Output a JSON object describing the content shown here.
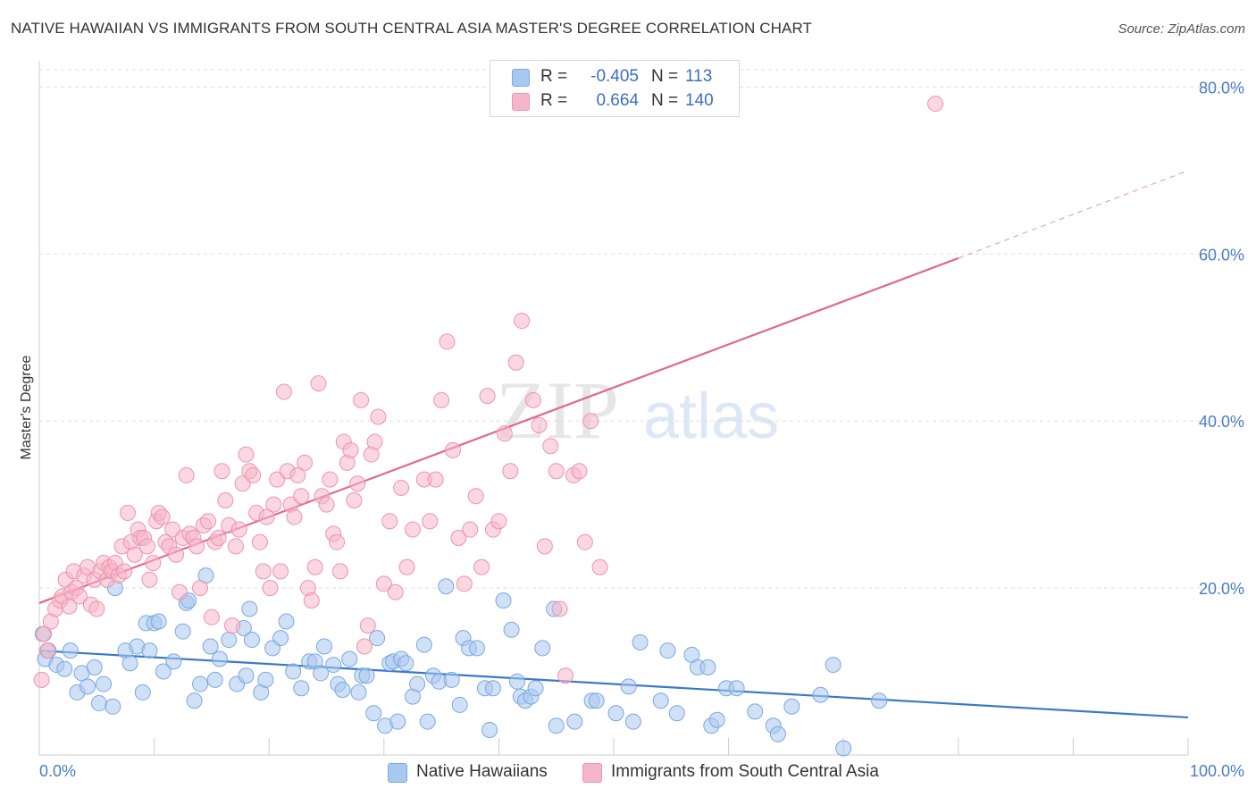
{
  "title": "NATIVE HAWAIIAN VS IMMIGRANTS FROM SOUTH CENTRAL ASIA MASTER'S DEGREE CORRELATION CHART",
  "source": "Source: ZipAtlas.com",
  "watermark": {
    "zip": "ZIP",
    "atlas": "atlas"
  },
  "colors": {
    "blue_fill": "#a9c8f0",
    "blue_stroke": "#7aa8e0",
    "blue_line": "#3a78c8",
    "pink_fill": "#f5b6c9",
    "pink_stroke": "#ee93b0",
    "pink_line": "#e06890",
    "grid": "#dddddd",
    "tick_text": "#4a7cc9"
  },
  "legend": {
    "rows": [
      {
        "r_label": "R =",
        "r_value": "-0.405",
        "n_label": "N =",
        "n_value": "113"
      },
      {
        "r_label": "R =",
        "r_value": "0.664",
        "n_label": "N =",
        "n_value": "140"
      }
    ]
  },
  "bottom_legend": [
    "Native Hawaiians",
    "Immigrants from South Central Asia"
  ],
  "chart_data": {
    "type": "scatter",
    "xlabel": "",
    "ylabel": "Master's Degree",
    "xlim": [
      0,
      100
    ],
    "ylim": [
      0,
      84
    ],
    "x_tick_labels": [
      "0.0%",
      "100.0%"
    ],
    "y_ticks": [
      20,
      40,
      60,
      80
    ],
    "y_tick_labels": [
      "20.0%",
      "40.0%",
      "60.0%",
      "80.0%"
    ],
    "grid": "horizontal dashed",
    "legend_position": "top-center",
    "series": [
      {
        "name": "Native Hawaiians",
        "color": "#a9c8f0",
        "trend": {
          "x": [
            0,
            100
          ],
          "y": [
            12.5,
            4.5
          ]
        },
        "points": [
          [
            0.3,
            14.5
          ],
          [
            0.5,
            11.5
          ],
          [
            0.8,
            12.5
          ],
          [
            1.5,
            10.8
          ],
          [
            2.2,
            10.3
          ],
          [
            2.7,
            12.5
          ],
          [
            3.3,
            7.5
          ],
          [
            3.7,
            9.8
          ],
          [
            4.2,
            8.2
          ],
          [
            4.8,
            10.5
          ],
          [
            5.2,
            6.2
          ],
          [
            5.6,
            8.5
          ],
          [
            6.4,
            5.8
          ],
          [
            6.6,
            20
          ],
          [
            7.5,
            12.5
          ],
          [
            7.9,
            11
          ],
          [
            8.5,
            13
          ],
          [
            9,
            7.5
          ],
          [
            9.3,
            15.8
          ],
          [
            9.6,
            12.5
          ],
          [
            10,
            15.8
          ],
          [
            10.4,
            16
          ],
          [
            10.8,
            10
          ],
          [
            11.7,
            11.2
          ],
          [
            12.5,
            14.8
          ],
          [
            12.8,
            18.2
          ],
          [
            13,
            18.5
          ],
          [
            13.5,
            6.5
          ],
          [
            14,
            8.5
          ],
          [
            14.5,
            21.5
          ],
          [
            14.9,
            13
          ],
          [
            15.3,
            9
          ],
          [
            15.7,
            11.5
          ],
          [
            16.5,
            13.8
          ],
          [
            17.2,
            8.5
          ],
          [
            17.8,
            15.2
          ],
          [
            18,
            9.5
          ],
          [
            18.3,
            17.5
          ],
          [
            18.5,
            13.8
          ],
          [
            19.3,
            7.5
          ],
          [
            19.7,
            9
          ],
          [
            20.3,
            12.8
          ],
          [
            21,
            14
          ],
          [
            21.5,
            16
          ],
          [
            22.1,
            10
          ],
          [
            22.8,
            8
          ],
          [
            23.5,
            11.2
          ],
          [
            24,
            11.2
          ],
          [
            24.5,
            9.8
          ],
          [
            24.8,
            13
          ],
          [
            25.6,
            10.8
          ],
          [
            26,
            8.5
          ],
          [
            26.4,
            7.8
          ],
          [
            27,
            11.5
          ],
          [
            27.8,
            7.5
          ],
          [
            28.1,
            9.5
          ],
          [
            28.5,
            9.5
          ],
          [
            29.1,
            5
          ],
          [
            29.4,
            14
          ],
          [
            30.1,
            3.5
          ],
          [
            30.5,
            11
          ],
          [
            30.8,
            11.2
          ],
          [
            31.2,
            4
          ],
          [
            31.5,
            11.5
          ],
          [
            31.9,
            11
          ],
          [
            32.5,
            7
          ],
          [
            32.9,
            8.5
          ],
          [
            33.5,
            13.2
          ],
          [
            33.8,
            4
          ],
          [
            34.3,
            9.5
          ],
          [
            34.8,
            8.8
          ],
          [
            35.4,
            20.2
          ],
          [
            35.9,
            9
          ],
          [
            36.6,
            6
          ],
          [
            36.9,
            14
          ],
          [
            37.4,
            12.8
          ],
          [
            38.1,
            12.8
          ],
          [
            38.8,
            8
          ],
          [
            39.2,
            3
          ],
          [
            39.5,
            8
          ],
          [
            40.4,
            18.5
          ],
          [
            41.1,
            15
          ],
          [
            41.6,
            8.8
          ],
          [
            41.9,
            7
          ],
          [
            42.3,
            6.5
          ],
          [
            42.8,
            7
          ],
          [
            43.2,
            8
          ],
          [
            43.8,
            12.8
          ],
          [
            44.8,
            17.5
          ],
          [
            45,
            3.5
          ],
          [
            46.6,
            4
          ],
          [
            48.1,
            6.5
          ],
          [
            48.5,
            6.5
          ],
          [
            50.2,
            5
          ],
          [
            51.3,
            8.2
          ],
          [
            51.7,
            4
          ],
          [
            52.3,
            13.5
          ],
          [
            54.1,
            6.5
          ],
          [
            54.7,
            12.5
          ],
          [
            55.5,
            5
          ],
          [
            56.8,
            12
          ],
          [
            57.3,
            10.5
          ],
          [
            58.2,
            10.5
          ],
          [
            58.5,
            3.5
          ],
          [
            59,
            4.2
          ],
          [
            59.8,
            8
          ],
          [
            60.7,
            8
          ],
          [
            62.3,
            5.2
          ],
          [
            63.9,
            3.5
          ],
          [
            64.3,
            2.5
          ],
          [
            65.5,
            5.8
          ],
          [
            68,
            7.2
          ],
          [
            69.1,
            10.8
          ],
          [
            70,
            0.8
          ],
          [
            73.1,
            6.5
          ]
        ]
      },
      {
        "name": "Immigrants from South Central Asia",
        "color": "#f5b6c9",
        "trend": {
          "x": [
            0,
            80
          ],
          "y": [
            18.2,
            59.5
          ]
        },
        "trend_dashed": {
          "x": [
            80,
            100
          ],
          "y": [
            59.5,
            70
          ]
        },
        "points": [
          [
            0.2,
            9
          ],
          [
            0.4,
            14.5
          ],
          [
            0.7,
            12.5
          ],
          [
            1,
            16
          ],
          [
            1.4,
            17.5
          ],
          [
            1.8,
            18.5
          ],
          [
            2,
            19
          ],
          [
            2.3,
            21
          ],
          [
            2.6,
            17.8
          ],
          [
            2.8,
            19.5
          ],
          [
            3,
            22
          ],
          [
            3.2,
            20
          ],
          [
            3.5,
            19
          ],
          [
            3.9,
            21.5
          ],
          [
            4.2,
            22.5
          ],
          [
            4.5,
            18
          ],
          [
            4.8,
            21
          ],
          [
            5,
            17.5
          ],
          [
            5.3,
            22
          ],
          [
            5.6,
            23
          ],
          [
            5.9,
            21
          ],
          [
            6.1,
            22.5
          ],
          [
            6.3,
            22
          ],
          [
            6.6,
            23
          ],
          [
            6.9,
            21.5
          ],
          [
            7.2,
            25
          ],
          [
            7.4,
            22
          ],
          [
            7.7,
            29
          ],
          [
            8,
            25.5
          ],
          [
            8.3,
            24
          ],
          [
            8.6,
            27
          ],
          [
            8.8,
            26
          ],
          [
            9.1,
            26
          ],
          [
            9.4,
            25
          ],
          [
            9.6,
            21
          ],
          [
            9.9,
            23
          ],
          [
            10.2,
            28
          ],
          [
            10.4,
            29
          ],
          [
            10.7,
            28.5
          ],
          [
            11,
            25.5
          ],
          [
            11.3,
            25
          ],
          [
            11.6,
            27
          ],
          [
            11.9,
            24
          ],
          [
            12.2,
            19.5
          ],
          [
            12.5,
            26
          ],
          [
            12.8,
            33.5
          ],
          [
            13.1,
            26.5
          ],
          [
            13.4,
            26
          ],
          [
            13.7,
            25
          ],
          [
            14,
            20
          ],
          [
            14.3,
            27.5
          ],
          [
            14.7,
            28
          ],
          [
            15,
            16.5
          ],
          [
            15.3,
            25.5
          ],
          [
            15.6,
            26
          ],
          [
            15.9,
            34
          ],
          [
            16.2,
            30.5
          ],
          [
            16.5,
            27.5
          ],
          [
            16.8,
            15.5
          ],
          [
            17.1,
            25
          ],
          [
            17.4,
            27
          ],
          [
            17.7,
            32.5
          ],
          [
            18,
            36
          ],
          [
            18.3,
            34
          ],
          [
            18.6,
            33.5
          ],
          [
            18.9,
            29
          ],
          [
            19.2,
            25.5
          ],
          [
            19.5,
            22
          ],
          [
            19.8,
            28.5
          ],
          [
            20.1,
            20
          ],
          [
            20.4,
            30
          ],
          [
            20.7,
            33
          ],
          [
            21,
            22
          ],
          [
            21.3,
            43.5
          ],
          [
            21.6,
            34
          ],
          [
            21.9,
            30
          ],
          [
            22.2,
            28.5
          ],
          [
            22.5,
            33.5
          ],
          [
            22.8,
            31
          ],
          [
            23.1,
            35
          ],
          [
            23.4,
            20
          ],
          [
            23.7,
            18.5
          ],
          [
            24,
            22.5
          ],
          [
            24.3,
            44.5
          ],
          [
            24.6,
            31
          ],
          [
            25,
            30
          ],
          [
            25.3,
            33
          ],
          [
            25.6,
            26.5
          ],
          [
            25.9,
            25.5
          ],
          [
            26.2,
            22
          ],
          [
            26.5,
            37.5
          ],
          [
            26.8,
            35
          ],
          [
            27.1,
            36.5
          ],
          [
            27.4,
            30.5
          ],
          [
            27.7,
            32.5
          ],
          [
            28,
            42.5
          ],
          [
            28.3,
            13
          ],
          [
            28.6,
            15.5
          ],
          [
            28.9,
            36
          ],
          [
            29.2,
            37.5
          ],
          [
            29.5,
            40.5
          ],
          [
            30,
            20.5
          ],
          [
            30.5,
            28
          ],
          [
            31,
            19.5
          ],
          [
            31.5,
            32
          ],
          [
            32,
            22.5
          ],
          [
            32.5,
            27
          ],
          [
            33.5,
            33
          ],
          [
            34,
            28
          ],
          [
            34.5,
            33
          ],
          [
            35,
            42.5
          ],
          [
            35.5,
            49.5
          ],
          [
            36,
            36.5
          ],
          [
            36.5,
            26
          ],
          [
            37,
            20.5
          ],
          [
            37.5,
            27
          ],
          [
            38,
            31
          ],
          [
            38.5,
            22.5
          ],
          [
            39,
            43
          ],
          [
            39.5,
            27
          ],
          [
            40,
            28
          ],
          [
            40.5,
            38.5
          ],
          [
            41,
            34
          ],
          [
            41.5,
            47
          ],
          [
            42,
            52
          ],
          [
            43,
            42.5
          ],
          [
            43.5,
            39.5
          ],
          [
            44,
            25
          ],
          [
            44.5,
            37
          ],
          [
            45,
            34
          ],
          [
            45.3,
            17.5
          ],
          [
            45.8,
            9.5
          ],
          [
            46.5,
            33.5
          ],
          [
            47,
            34
          ],
          [
            47.5,
            25.5
          ],
          [
            48,
            40
          ],
          [
            48.8,
            22.5
          ],
          [
            78,
            78
          ]
        ]
      }
    ]
  }
}
